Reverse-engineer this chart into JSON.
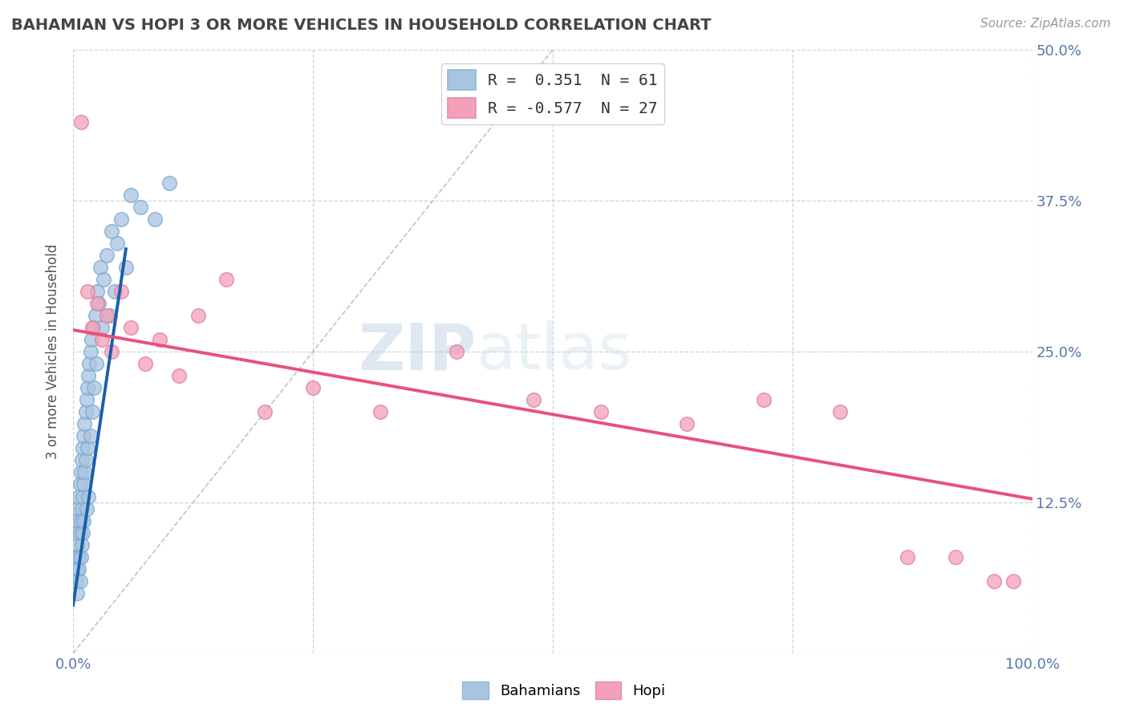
{
  "title": "BAHAMIAN VS HOPI 3 OR MORE VEHICLES IN HOUSEHOLD CORRELATION CHART",
  "source": "Source: ZipAtlas.com",
  "ylabel": "3 or more Vehicles in Household",
  "xlim": [
    0.0,
    1.0
  ],
  "ylim": [
    0.0,
    0.5
  ],
  "x_ticks": [
    0.0,
    0.25,
    0.5,
    0.75,
    1.0
  ],
  "x_tick_labels": [
    "0.0%",
    "",
    "",
    "",
    "100.0%"
  ],
  "y_ticks": [
    0.0,
    0.125,
    0.25,
    0.375,
    0.5
  ],
  "y_tick_labels_right": [
    "",
    "12.5%",
    "25.0%",
    "37.5%",
    "50.0%"
  ],
  "legend_r1": "R =  0.351  N = 61",
  "legend_r2": "R = -0.577  N = 27",
  "blue_color": "#a8c4e0",
  "pink_color": "#f4a0b8",
  "blue_line_color": "#1a5faa",
  "pink_line_color": "#e8517a",
  "diag_color": "#aabbd0",
  "watermark_zip": "ZIP",
  "watermark_atlas": "atlas",
  "background_color": "#ffffff",
  "grid_color": "#c8ccd8",
  "title_color": "#444444",
  "axis_label_color": "#5577aa",
  "blue_scatter_x": [
    0.002,
    0.003,
    0.003,
    0.004,
    0.004,
    0.005,
    0.005,
    0.005,
    0.006,
    0.006,
    0.006,
    0.007,
    0.007,
    0.007,
    0.008,
    0.008,
    0.008,
    0.009,
    0.009,
    0.009,
    0.01,
    0.01,
    0.01,
    0.011,
    0.011,
    0.011,
    0.012,
    0.012,
    0.013,
    0.013,
    0.014,
    0.014,
    0.015,
    0.015,
    0.016,
    0.016,
    0.017,
    0.018,
    0.018,
    0.019,
    0.02,
    0.021,
    0.022,
    0.023,
    0.024,
    0.025,
    0.027,
    0.028,
    0.03,
    0.032,
    0.035,
    0.038,
    0.04,
    0.043,
    0.046,
    0.05,
    0.055,
    0.06,
    0.07,
    0.085,
    0.1
  ],
  "blue_scatter_y": [
    0.08,
    0.06,
    0.1,
    0.05,
    0.07,
    0.12,
    0.09,
    0.11,
    0.08,
    0.13,
    0.07,
    0.14,
    0.1,
    0.06,
    0.15,
    0.11,
    0.08,
    0.16,
    0.12,
    0.09,
    0.17,
    0.13,
    0.1,
    0.18,
    0.14,
    0.11,
    0.19,
    0.15,
    0.2,
    0.16,
    0.21,
    0.12,
    0.22,
    0.17,
    0.23,
    0.13,
    0.24,
    0.25,
    0.18,
    0.26,
    0.2,
    0.27,
    0.22,
    0.28,
    0.24,
    0.3,
    0.29,
    0.32,
    0.27,
    0.31,
    0.33,
    0.28,
    0.35,
    0.3,
    0.34,
    0.36,
    0.32,
    0.38,
    0.37,
    0.36,
    0.39
  ],
  "pink_scatter_x": [
    0.008,
    0.015,
    0.02,
    0.025,
    0.03,
    0.035,
    0.04,
    0.05,
    0.06,
    0.075,
    0.09,
    0.11,
    0.13,
    0.16,
    0.2,
    0.25,
    0.32,
    0.4,
    0.48,
    0.55,
    0.64,
    0.72,
    0.8,
    0.87,
    0.92,
    0.96,
    0.98
  ],
  "pink_scatter_y": [
    0.44,
    0.3,
    0.27,
    0.29,
    0.26,
    0.28,
    0.25,
    0.3,
    0.27,
    0.24,
    0.26,
    0.23,
    0.28,
    0.31,
    0.2,
    0.22,
    0.2,
    0.25,
    0.21,
    0.2,
    0.19,
    0.21,
    0.2,
    0.08,
    0.08,
    0.06,
    0.06
  ],
  "blue_line_x": [
    0.0,
    0.055
  ],
  "blue_line_y": [
    0.04,
    0.335
  ],
  "pink_line_x": [
    0.0,
    1.0
  ],
  "pink_line_y": [
    0.268,
    0.128
  ],
  "diag_line_x": [
    0.0,
    0.5
  ],
  "diag_line_y": [
    0.0,
    0.5
  ]
}
